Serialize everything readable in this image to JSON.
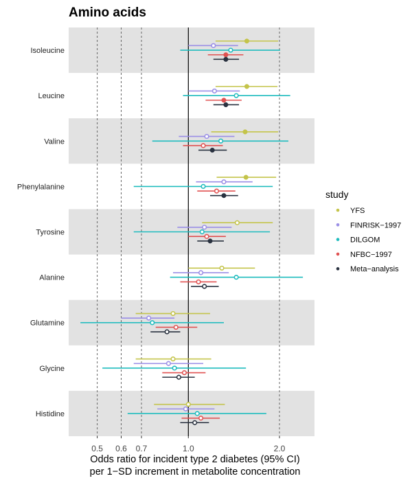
{
  "chart_data": {
    "type": "forest",
    "title": "Amino acids",
    "xlabel_lines": [
      "Odds ratio for incident type 2 diabetes (95% CI)",
      "per 1−SD increment in metabolite concentration"
    ],
    "x_scale": "log",
    "xlim": [
      0.404,
      2.61
    ],
    "x_ticks": [
      0.5,
      0.6,
      0.7,
      1.0,
      2.0
    ],
    "x_tick_labels": [
      "0.5",
      "0.6",
      "0.7",
      "1.0",
      "2.0"
    ],
    "dashed_gridlines": [
      0.5,
      0.6,
      0.7,
      2.0
    ],
    "reference_line": 1.0,
    "legend": {
      "title": "study",
      "placement": "right"
    },
    "series": [
      {
        "name": "YFS",
        "color": "#c4c44a"
      },
      {
        "name": "FINRISK−1997",
        "color": "#9a8ee6"
      },
      {
        "name": "DILGOM",
        "color": "#1fbcbe"
      },
      {
        "name": "NFBC−1997",
        "color": "#e05252"
      },
      {
        "name": "Meta−analysis",
        "color": "#2a3240"
      }
    ],
    "shaded_rows_color": "#e2e2e2",
    "rows": [
      {
        "label": "Isoleucine",
        "shaded": true,
        "estimates": [
          {
            "or": 1.56,
            "lo": 1.23,
            "hi": 1.98,
            "filled": true
          },
          {
            "or": 1.21,
            "lo": 1.0,
            "hi": 1.46,
            "filled": false
          },
          {
            "or": 1.38,
            "lo": 0.94,
            "hi": 2.01,
            "filled": false
          },
          {
            "or": 1.33,
            "lo": 1.16,
            "hi": 1.52,
            "filled": true
          },
          {
            "or": 1.33,
            "lo": 1.21,
            "hi": 1.47,
            "filled": true
          }
        ]
      },
      {
        "label": "Leucine",
        "shaded": false,
        "estimates": [
          {
            "or": 1.56,
            "lo": 1.23,
            "hi": 1.97,
            "filled": true
          },
          {
            "or": 1.22,
            "lo": 1.0,
            "hi": 1.48,
            "filled": false
          },
          {
            "or": 1.44,
            "lo": 0.96,
            "hi": 2.17,
            "filled": false
          },
          {
            "or": 1.31,
            "lo": 1.14,
            "hi": 1.5,
            "filled": true
          },
          {
            "or": 1.33,
            "lo": 1.21,
            "hi": 1.47,
            "filled": true
          }
        ]
      },
      {
        "label": "Valine",
        "shaded": true,
        "estimates": [
          {
            "or": 1.54,
            "lo": 1.19,
            "hi": 1.98,
            "filled": true
          },
          {
            "or": 1.15,
            "lo": 0.93,
            "hi": 1.42,
            "filled": false
          },
          {
            "or": 1.28,
            "lo": 0.76,
            "hi": 2.14,
            "filled": false
          },
          {
            "or": 1.12,
            "lo": 0.96,
            "hi": 1.3,
            "filled": false
          },
          {
            "or": 1.2,
            "lo": 1.08,
            "hi": 1.34,
            "filled": true
          }
        ]
      },
      {
        "label": "Phenylalanine",
        "shaded": false,
        "estimates": [
          {
            "or": 1.55,
            "lo": 1.24,
            "hi": 1.95,
            "filled": true
          },
          {
            "or": 1.31,
            "lo": 1.06,
            "hi": 1.63,
            "filled": false
          },
          {
            "or": 1.12,
            "lo": 0.66,
            "hi": 1.9,
            "filled": false
          },
          {
            "or": 1.24,
            "lo": 1.07,
            "hi": 1.43,
            "filled": false
          },
          {
            "or": 1.31,
            "lo": 1.18,
            "hi": 1.46,
            "filled": true
          }
        ]
      },
      {
        "label": "Tyrosine",
        "shaded": true,
        "estimates": [
          {
            "or": 1.45,
            "lo": 1.11,
            "hi": 1.9,
            "filled": false
          },
          {
            "or": 1.13,
            "lo": 0.92,
            "hi": 1.39,
            "filled": false
          },
          {
            "or": 1.11,
            "lo": 0.66,
            "hi": 1.86,
            "filled": false
          },
          {
            "or": 1.15,
            "lo": 1.0,
            "hi": 1.33,
            "filled": false
          },
          {
            "or": 1.18,
            "lo": 1.07,
            "hi": 1.31,
            "filled": true
          }
        ]
      },
      {
        "label": "Alanine",
        "shaded": false,
        "estimates": [
          {
            "or": 1.29,
            "lo": 1.0,
            "hi": 1.66,
            "filled": false
          },
          {
            "or": 1.1,
            "lo": 0.89,
            "hi": 1.36,
            "filled": false
          },
          {
            "or": 1.44,
            "lo": 0.87,
            "hi": 2.39,
            "filled": false
          },
          {
            "or": 1.08,
            "lo": 0.94,
            "hi": 1.24,
            "filled": false
          },
          {
            "or": 1.13,
            "lo": 1.02,
            "hi": 1.26,
            "filled": false
          }
        ]
      },
      {
        "label": "Glutamine",
        "shaded": true,
        "estimates": [
          {
            "or": 0.89,
            "lo": 0.67,
            "hi": 1.18,
            "filled": false
          },
          {
            "or": 0.74,
            "lo": 0.6,
            "hi": 0.9,
            "filled": false
          },
          {
            "or": 0.76,
            "lo": 0.44,
            "hi": 1.31,
            "filled": false
          },
          {
            "or": 0.91,
            "lo": 0.78,
            "hi": 1.07,
            "filled": false
          },
          {
            "or": 0.85,
            "lo": 0.75,
            "hi": 0.94,
            "filled": false
          }
        ]
      },
      {
        "label": "Glycine",
        "shaded": false,
        "estimates": [
          {
            "or": 0.89,
            "lo": 0.67,
            "hi": 1.19,
            "filled": false
          },
          {
            "or": 0.86,
            "lo": 0.66,
            "hi": 1.12,
            "filled": false
          },
          {
            "or": 0.9,
            "lo": 0.52,
            "hi": 1.55,
            "filled": false
          },
          {
            "or": 0.97,
            "lo": 0.82,
            "hi": 1.14,
            "filled": false
          },
          {
            "or": 0.93,
            "lo": 0.82,
            "hi": 1.05,
            "filled": false
          }
        ]
      },
      {
        "label": "Histidine",
        "shaded": true,
        "estimates": [
          {
            "or": 1.0,
            "lo": 0.77,
            "hi": 1.32,
            "filled": false
          },
          {
            "or": 0.98,
            "lo": 0.79,
            "hi": 1.22,
            "filled": false
          },
          {
            "or": 1.07,
            "lo": 0.63,
            "hi": 1.81,
            "filled": false
          },
          {
            "or": 1.1,
            "lo": 0.95,
            "hi": 1.27,
            "filled": false
          },
          {
            "or": 1.05,
            "lo": 0.94,
            "hi": 1.17,
            "filled": false
          }
        ]
      }
    ]
  }
}
